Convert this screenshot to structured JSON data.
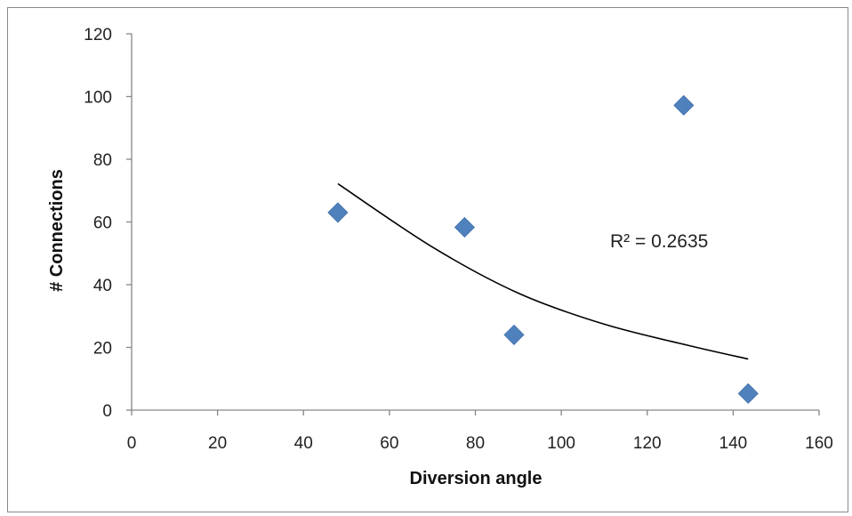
{
  "chart_data": {
    "type": "scatter",
    "title": "",
    "xlabel": "Diversion angle",
    "ylabel": "# Connections",
    "xlim": [
      0,
      160
    ],
    "ylim": [
      0,
      120
    ],
    "x_ticks": [
      0,
      20,
      40,
      60,
      80,
      100,
      120,
      140,
      160
    ],
    "y_ticks": [
      0,
      20,
      40,
      60,
      80,
      100,
      120
    ],
    "x_tick_labels": [
      "0",
      "20",
      "40",
      "60",
      "80",
      "100",
      "120",
      "140",
      "160"
    ],
    "y_tick_labels": [
      "0",
      "20",
      "40",
      "60",
      "80",
      "100",
      "120"
    ],
    "grid": false,
    "legend": "none",
    "marker": "diamond",
    "colors": {
      "marker": "#4f81bd",
      "trendline": "#000000",
      "axis": "#868686"
    },
    "series": [
      {
        "points": [
          {
            "x": 48,
            "y": 63
          },
          {
            "x": 77.5,
            "y": 58.3
          },
          {
            "x": 89,
            "y": 24
          },
          {
            "x": 128.5,
            "y": 97.2
          },
          {
            "x": 143.5,
            "y": 5.3
          }
        ]
      }
    ],
    "trendline": {
      "type": "power",
      "x_range": [
        48,
        143.5
      ],
      "approx_points": [
        {
          "x": 48,
          "y": 72.2
        },
        {
          "x": 70,
          "y": 52
        },
        {
          "x": 90,
          "y": 37.3
        },
        {
          "x": 110,
          "y": 27.4
        },
        {
          "x": 130,
          "y": 20.5
        },
        {
          "x": 143.5,
          "y": 16.3
        }
      ]
    },
    "annotation": "R² = 0.2635"
  }
}
